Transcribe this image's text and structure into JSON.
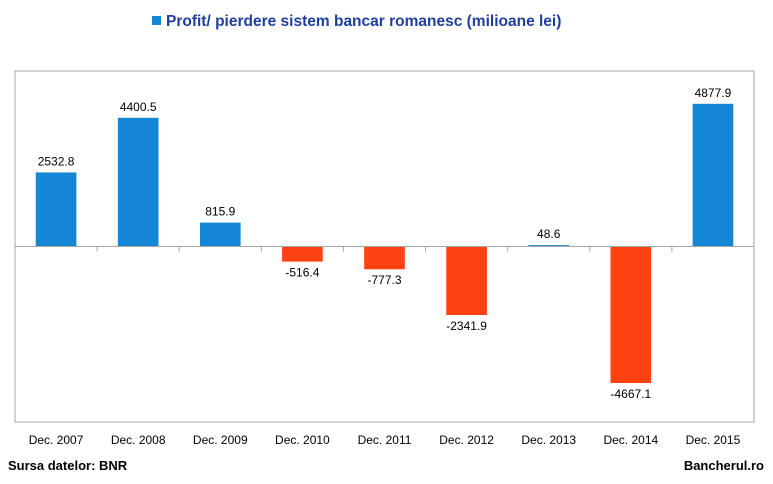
{
  "chart_data": {
    "type": "bar",
    "title": "",
    "legend": [
      {
        "name": "Profit/ pierdere sistem bancar romanesc (milioane lei)",
        "color": "#1586d6"
      }
    ],
    "legend_position": "top",
    "categories": [
      "Dec. 2007",
      "Dec. 2008",
      "Dec. 2009",
      "Dec. 2010",
      "Dec. 2011",
      "Dec. 2012",
      "Dec. 2013",
      "Dec. 2014",
      "Dec. 2015"
    ],
    "series": [
      {
        "name": "Profit/ pierdere sistem bancar romanesc (milioane lei)",
        "values": [
          2532.8,
          4400.5,
          815.9,
          -516.4,
          -777.3,
          -2341.9,
          48.6,
          -4667.1,
          4877.9
        ],
        "value_labels": [
          "2532.8",
          "4400.5",
          "815.9",
          "-516.4",
          "-777.3",
          "-2341.9",
          "48.6",
          "-4667.1",
          "4877.9"
        ]
      }
    ],
    "colors": {
      "positive": "#1586d6",
      "negative": "#fe4111"
    },
    "ylim": [
      -6000,
      6000
    ],
    "grid": false,
    "xlabel": "",
    "ylabel": ""
  },
  "footer": {
    "source": "Sursa datelor: BNR",
    "brand": "Bancherul.ro"
  }
}
